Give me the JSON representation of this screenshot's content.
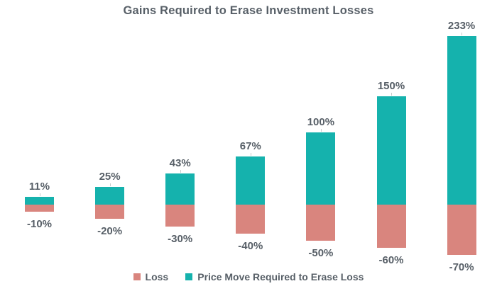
{
  "chart_data": {
    "type": "bar",
    "title": "Gains Required to Erase Investment Losses",
    "categories": [
      "-10%",
      "-20%",
      "-30%",
      "-40%",
      "-50%",
      "-60%",
      "-70%"
    ],
    "series": [
      {
        "name": "Loss",
        "values": [
          -10,
          -20,
          -30,
          -40,
          -50,
          -60,
          -70
        ],
        "labels": [
          "-10%",
          "-20%",
          "-30%",
          "-40%",
          "-50%",
          "-60%",
          "-70%"
        ],
        "color": "#d9857e"
      },
      {
        "name": "Price Move Required to Erase Loss",
        "values": [
          11,
          25,
          43,
          67,
          100,
          150,
          233
        ],
        "labels": [
          "11%",
          "25%",
          "43%",
          "67%",
          "100%",
          "150%",
          "233%"
        ],
        "color": "#15b2ad"
      }
    ],
    "xlabel": "",
    "ylabel": "",
    "ylim": [
      -80,
      250
    ],
    "grid": false,
    "axes_visible": false,
    "legend_position": "bottom",
    "stacked_on_zero_baseline": true
  },
  "colors": {
    "background": "#ffffff",
    "title_text": "#575f67",
    "label_text": "#575f67",
    "legend_text": "#575f67",
    "leader_line": "#c9cccc"
  }
}
